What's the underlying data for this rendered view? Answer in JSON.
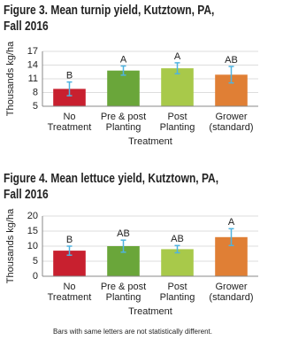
{
  "chart_data": [
    {
      "type": "bar",
      "title": [
        "Figure 3. Mean turnip yield, Kutztown, PA,",
        "Fall 2016"
      ],
      "categories": [
        [
          "No",
          "Treatment"
        ],
        [
          "Pre & post",
          "Planting"
        ],
        [
          "Post",
          "Planting"
        ],
        [
          "Grower",
          "(standard)"
        ]
      ],
      "values": [
        8.8,
        12.8,
        13.3,
        11.9
      ],
      "errors": [
        1.5,
        1.0,
        1.2,
        1.8
      ],
      "letters": [
        "B",
        "A",
        "A",
        "AB"
      ],
      "colors": [
        "#c8202f",
        "#6aa63a",
        "#a8c94a",
        "#e07f35"
      ],
      "xlabel": "Treatment",
      "ylabel": "Thousands kg/ha",
      "ylim": [
        5,
        17
      ],
      "yticks": [
        5,
        8,
        11,
        14,
        17
      ],
      "grid": true
    },
    {
      "type": "bar",
      "title": [
        "Figure 4. Mean lettuce yield, Kutztown, PA,",
        "Fall 2016"
      ],
      "categories": [
        [
          "No",
          "Treatment"
        ],
        [
          "Pre & post",
          "Planting"
        ],
        [
          "Post",
          "Planting"
        ],
        [
          "Grower",
          "(standard)"
        ]
      ],
      "values": [
        8.5,
        10,
        9,
        13
      ],
      "errors": [
        1.5,
        2,
        1.2,
        2.8
      ],
      "letters": [
        "B",
        "AB",
        "AB",
        "A"
      ],
      "colors": [
        "#c8202f",
        "#6aa63a",
        "#a8c94a",
        "#e07f35"
      ],
      "xlabel": "Treatment",
      "ylabel": "Thousands kg/ha",
      "ylim": [
        0,
        20
      ],
      "yticks": [
        0,
        5,
        10,
        15,
        20
      ],
      "grid": true
    }
  ],
  "footnote": "Bars with same letters are not statistically different."
}
